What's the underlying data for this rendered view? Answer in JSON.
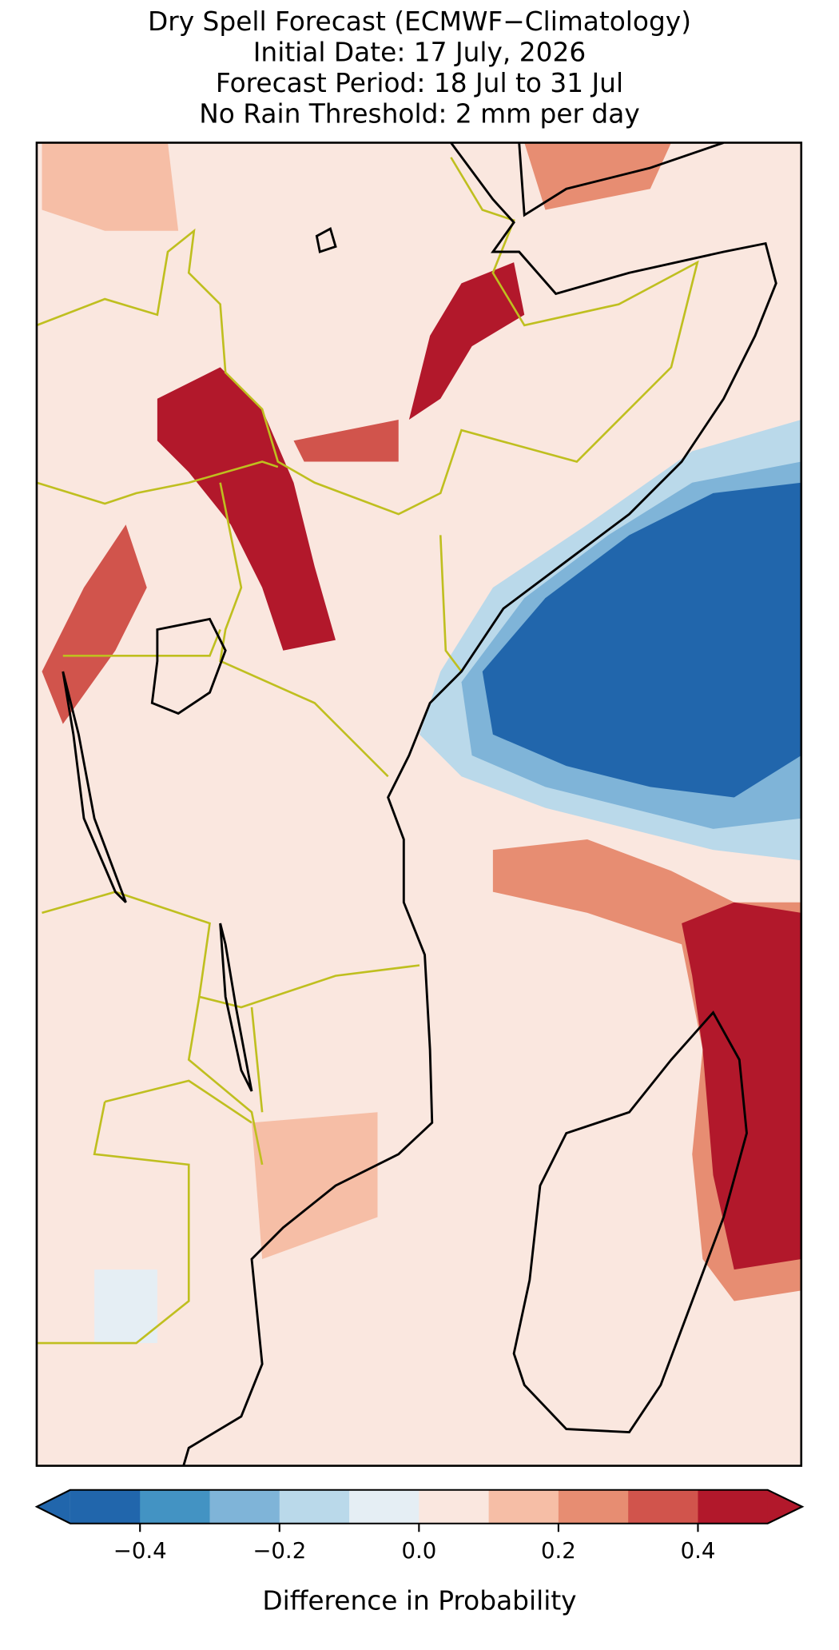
{
  "chart_data": {
    "type": "colormap",
    "title": [
      "Dry Spell Forecast (ECMWF−Climatology)",
      "Initial Date: 17 July, 2026",
      "Forecast Period: 18 Jul to 31 Jul",
      "No Rain Threshold: 2 mm per day"
    ],
    "colorbar": {
      "levels": [
        -0.5,
        -0.4,
        -0.3,
        -0.2,
        -0.1,
        0,
        0.1,
        0.2,
        0.3,
        0.4,
        0.5
      ],
      "colors": [
        "#2166ac",
        "#4393c3",
        "#7fb4d8",
        "#bad9ea",
        "#e5eef4",
        "#fae7df",
        "#f6bea6",
        "#e78d72",
        "#d1544c",
        "#b2182b"
      ],
      "xticks": [
        {
          "value": -0.4,
          "label": "−0.4"
        },
        {
          "value": -0.2,
          "label": "−0.2"
        },
        {
          "value": 0,
          "label": "0.0"
        },
        0.2,
        0.4
      ],
      "label": "Difference in Probability"
    }
  }
}
